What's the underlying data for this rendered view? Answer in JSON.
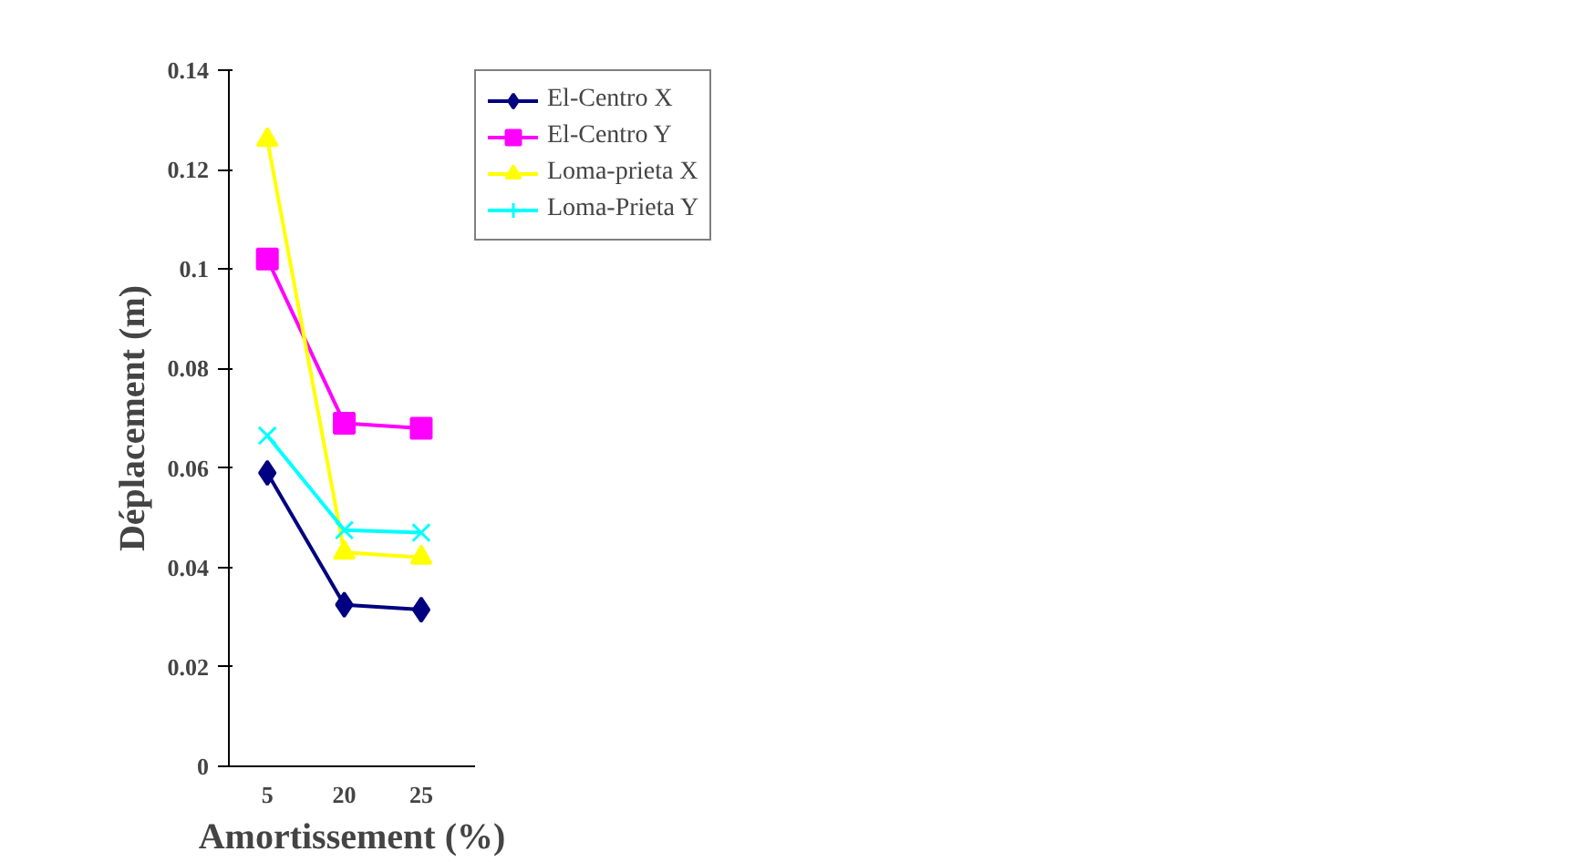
{
  "chart_data": {
    "type": "line",
    "xlabel": "Amortissement (%)",
    "ylabel": "Déplacement (m)",
    "categories": [
      "5",
      "20",
      "25"
    ],
    "series": [
      {
        "name": "El-Centro X",
        "color": "#000080",
        "marker": "diamond",
        "values": [
          0.059,
          0.0325,
          0.0315
        ]
      },
      {
        "name": "El-Centro Y",
        "color": "#ff00ff",
        "marker": "square",
        "values": [
          0.102,
          0.069,
          0.068
        ]
      },
      {
        "name": "Loma-prieta X",
        "color": "#ffff00",
        "marker": "triangle",
        "values": [
          0.126,
          0.043,
          0.042
        ]
      },
      {
        "name": "Loma-Prieta Y",
        "color": "#00ffff",
        "marker": "cross",
        "values": [
          0.0665,
          0.0475,
          0.047
        ]
      }
    ],
    "ylim": [
      0,
      0.14
    ],
    "yticks": [
      {
        "value": 0,
        "label": "0"
      },
      0.02,
      0.04,
      0.06,
      0.08,
      {
        "value": 0.1,
        "label": "0.1"
      },
      0.12,
      0.14
    ],
    "grid": false,
    "legend": "top right"
  }
}
